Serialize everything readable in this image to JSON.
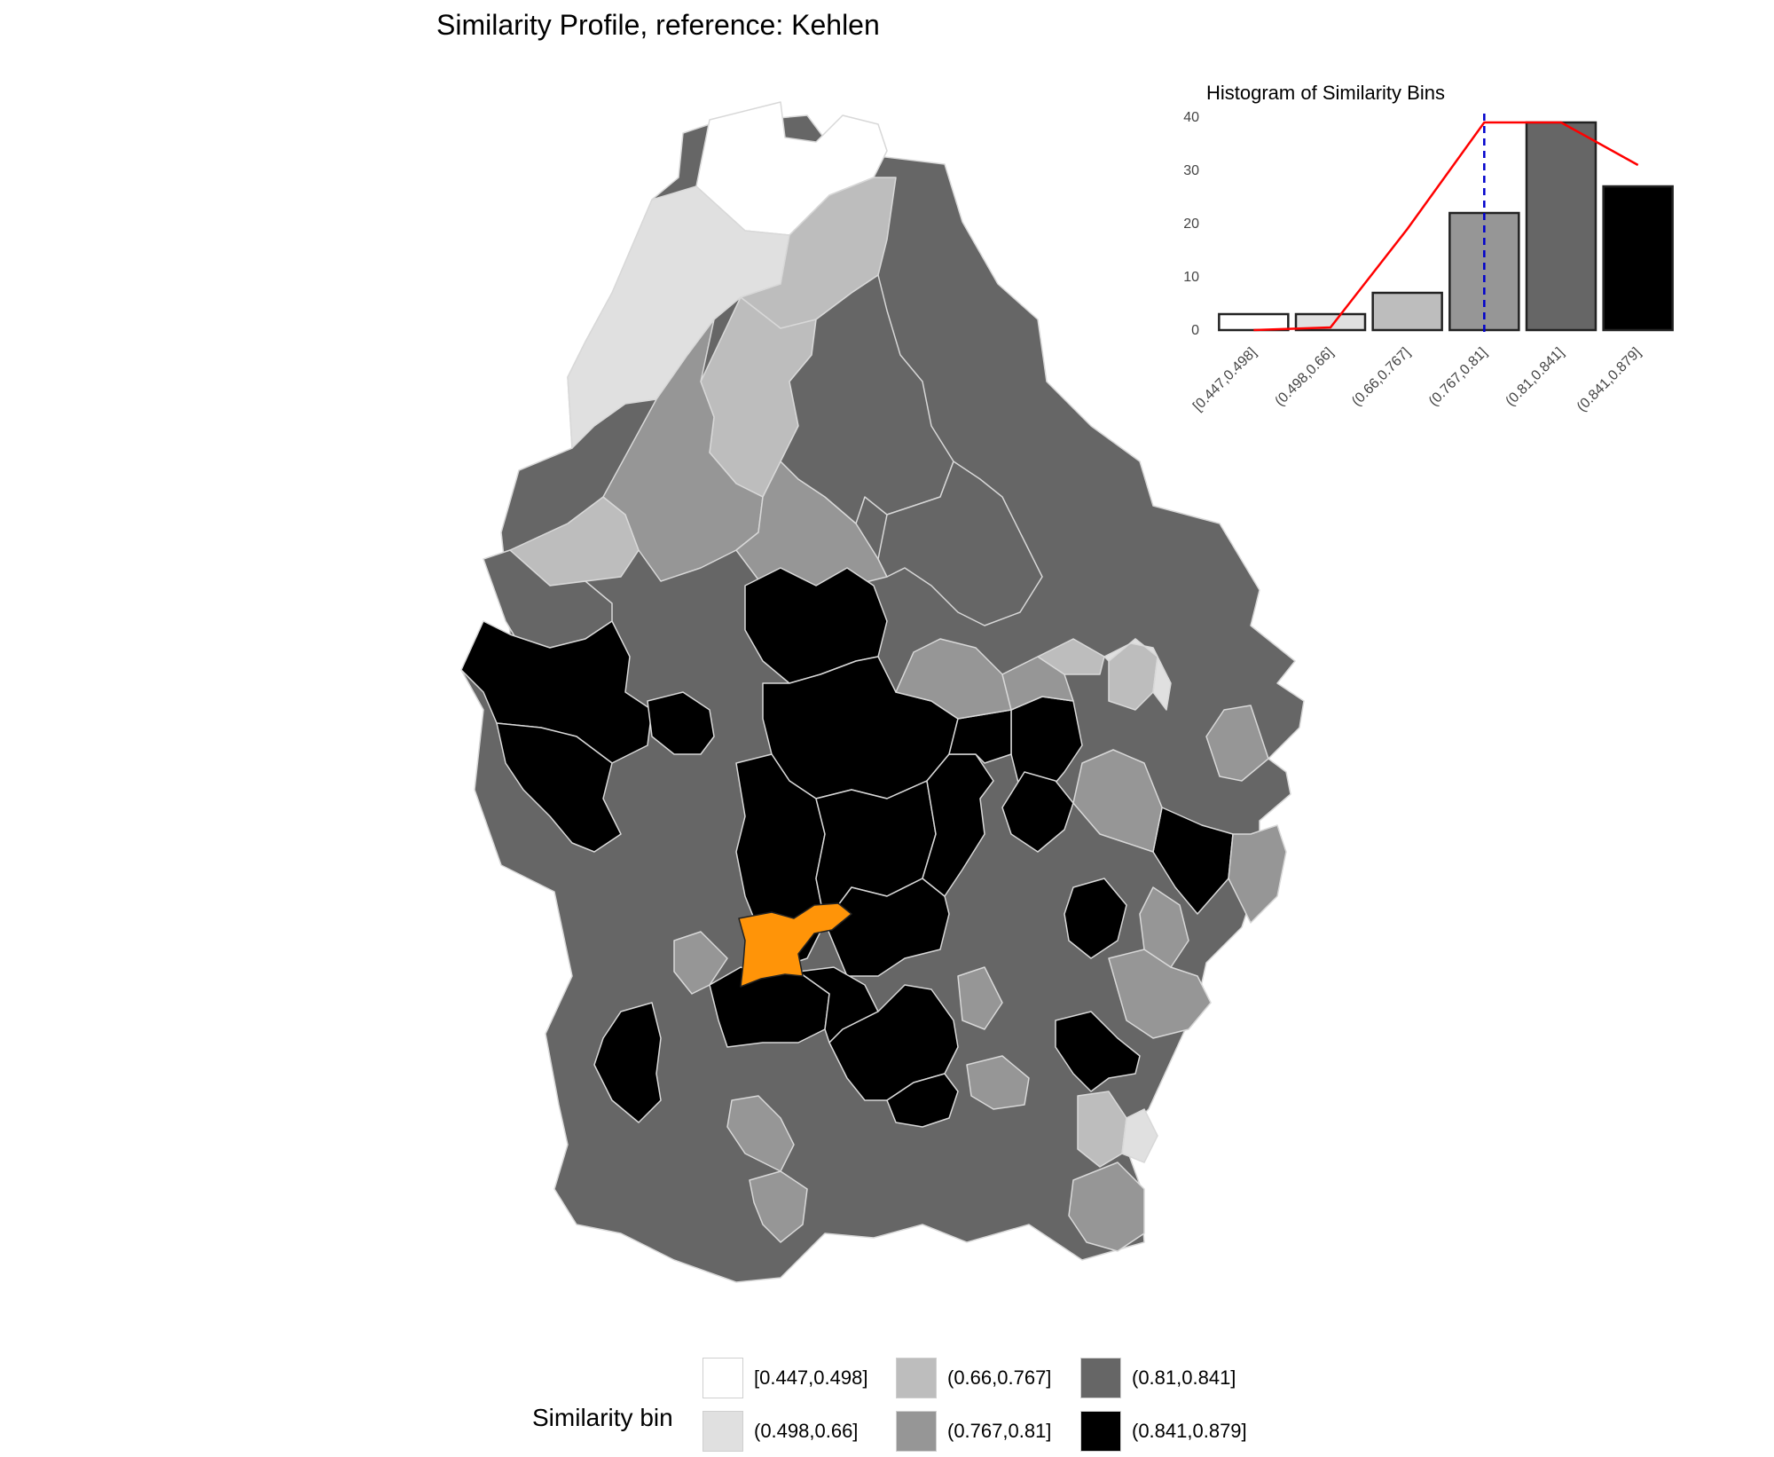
{
  "title": "Similarity Profile, reference: Kehlen",
  "colors": {
    "bin_1": "#ffffff",
    "bin_2": "#e0e0e0",
    "bin_3": "#bdbdbd",
    "bin_4": "#969696",
    "bin_5": "#666666",
    "bin_6": "#000000",
    "reference": "#ff9408",
    "border": "#d8d8d8",
    "density_line": "#ff0000",
    "reference_line": "#0000cc"
  },
  "legend": {
    "title": "Similarity bin",
    "items": [
      {
        "label": "[0.447,0.498]",
        "color": "#ffffff"
      },
      {
        "label": "(0.498,0.66]",
        "color": "#e0e0e0"
      },
      {
        "label": "(0.66,0.767]",
        "color": "#bdbdbd"
      },
      {
        "label": "(0.767,0.81]",
        "color": "#969696"
      },
      {
        "label": "(0.81,0.841]",
        "color": "#666666"
      },
      {
        "label": "(0.841,0.879]",
        "color": "#000000"
      }
    ]
  },
  "chart_data": {
    "type": "bar",
    "title": "Histogram of Similarity Bins",
    "categories": [
      "[0.447,0.498]",
      "(0.498,0.66]",
      "(0.66,0.767]",
      "(0.767,0.81]",
      "(0.81,0.841]",
      "(0.841,0.879]"
    ],
    "values": [
      3,
      3,
      7,
      22,
      39,
      27
    ],
    "bar_colors": [
      "#ffffff",
      "#e0e0e0",
      "#bdbdbd",
      "#969696",
      "#666666",
      "#000000"
    ],
    "line_values": [
      0,
      0.5,
      19,
      39,
      39,
      31
    ],
    "reference_category": "(0.767,0.81]",
    "yticks": [
      0,
      10,
      20,
      30,
      40
    ],
    "ylim": [
      0,
      40
    ],
    "xlabel": "",
    "ylabel": "",
    "grid": false
  }
}
